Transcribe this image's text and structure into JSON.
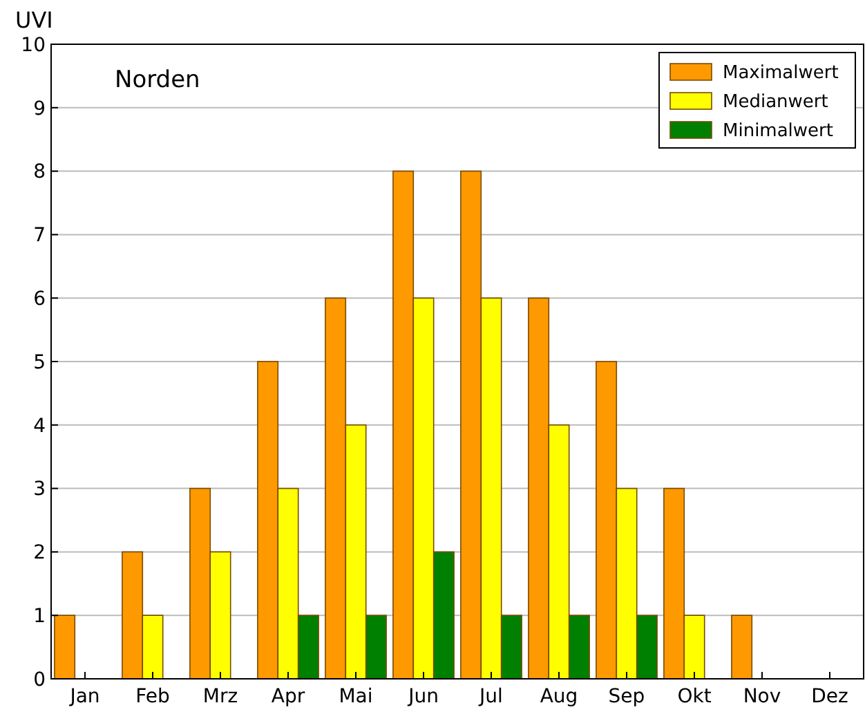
{
  "chart_data": {
    "type": "bar",
    "ylabel": "UVI",
    "annotations": [
      "Norden"
    ],
    "categories": [
      "Jan",
      "Feb",
      "Mrz",
      "Apr",
      "Mai",
      "Jun",
      "Jul",
      "Aug",
      "Sep",
      "Okt",
      "Nov",
      "Dez"
    ],
    "series": [
      {
        "name": "Maximalwert",
        "color": "#ff9900",
        "values": [
          1,
          2,
          3,
          5,
          6,
          8,
          8,
          6,
          5,
          3,
          1,
          0
        ]
      },
      {
        "name": "Medianwert",
        "color": "#ffff00",
        "values": [
          0,
          1,
          2,
          3,
          4,
          6,
          6,
          4,
          3,
          1,
          0,
          0
        ]
      },
      {
        "name": "Minimalwert",
        "color": "#008000",
        "values": [
          0,
          0,
          0,
          1,
          1,
          2,
          1,
          1,
          1,
          0,
          0,
          0
        ]
      }
    ],
    "ylim": [
      0,
      10
    ],
    "yticks": [
      0,
      1,
      2,
      3,
      4,
      5,
      6,
      7,
      8,
      9,
      10
    ],
    "grid": "y",
    "legend": "top right"
  }
}
